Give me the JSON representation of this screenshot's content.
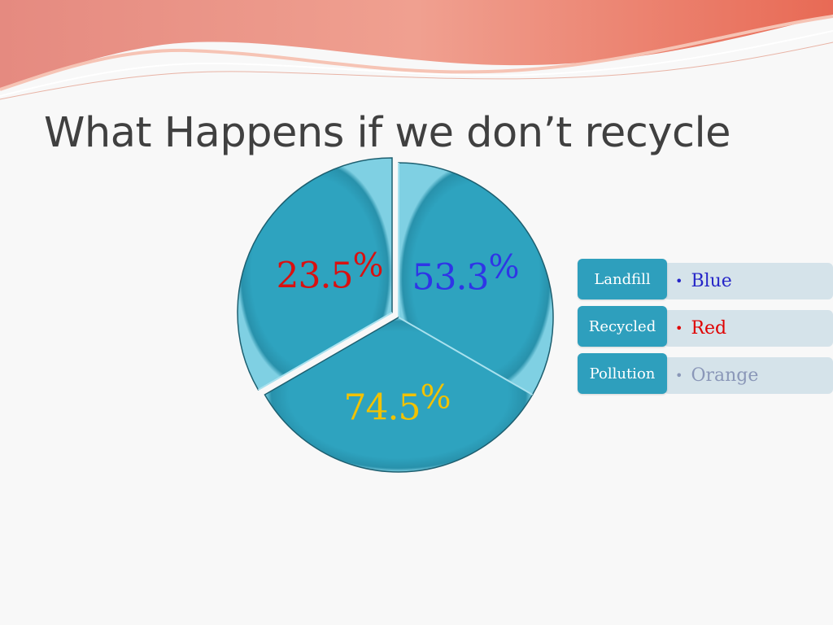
{
  "slide": {
    "title": "What Happens if we don’t recycle"
  },
  "chart_data": {
    "type": "pie",
    "slices": [
      {
        "label": "53.3",
        "suffix": "%",
        "value": 53.3,
        "color": "#2f35e6",
        "name": "Landfill"
      },
      {
        "label": "74.5",
        "suffix": "%",
        "value": 74.5,
        "color": "#f2c200",
        "name": "Pollution"
      },
      {
        "label": "23.5",
        "suffix": "%",
        "value": 23.5,
        "color": "#d91010",
        "name": "Recycled"
      }
    ],
    "fill_color": "#2ea3bf",
    "exploded_slice": "23.5"
  },
  "legend": {
    "rows": [
      {
        "key": "Landfill",
        "value": "Blue",
        "color": "#2626c8"
      },
      {
        "key": "Recycled",
        "value": "Red",
        "color": "#e00000"
      },
      {
        "key": "Pollution",
        "value": "Orange",
        "color": "#8a97b8"
      }
    ]
  },
  "colors": {
    "accent": "#2ea3bf",
    "legend_value_bg": "#d5e3ea",
    "title": "#404040",
    "wave": "#e8806e"
  }
}
